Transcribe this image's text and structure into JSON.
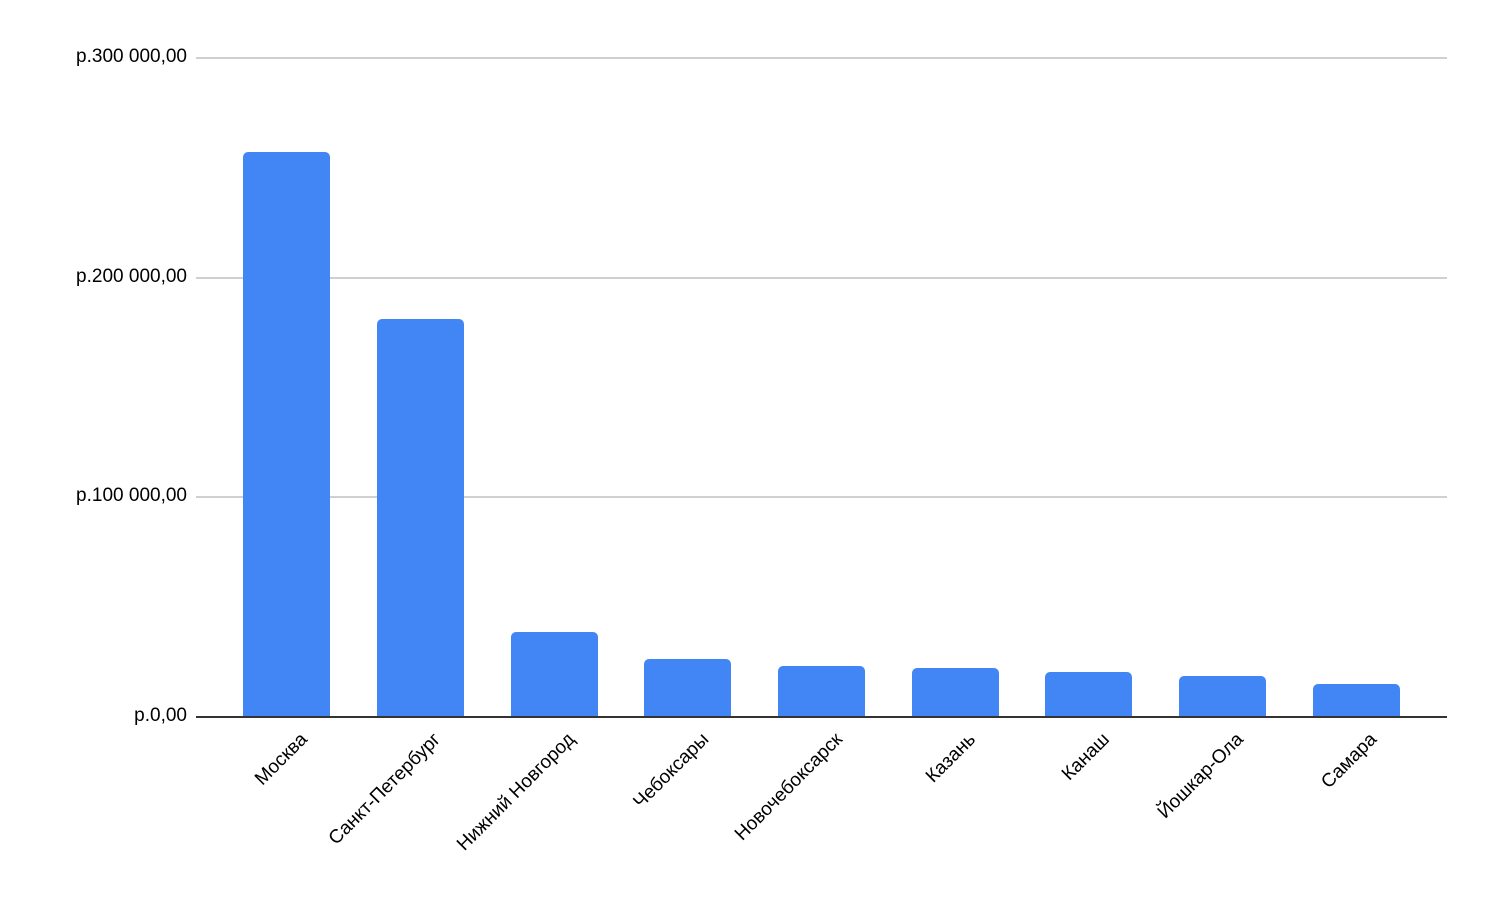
{
  "chart_data": {
    "type": "bar",
    "title": "",
    "xlabel": "",
    "ylabel": "",
    "categories": [
      "Москва",
      "Санкт-Петербург",
      "Нижний Новгород",
      "Чебоксары",
      "Новочебоксарск",
      "Казань",
      "Канаш",
      "Йошкар-Ола",
      "Самара"
    ],
    "values": [
      256700,
      180600,
      38200,
      26000,
      22800,
      21900,
      20000,
      18200,
      14600
    ],
    "currency_format": "р.#,##0.00",
    "ylim": [
      0,
      300000
    ],
    "y_ticks": [
      {
        "value": 0,
        "label": "р.0,00"
      },
      {
        "value": 100000,
        "label": "р.100 000,00"
      },
      {
        "value": 200000,
        "label": "р.200 000,00"
      },
      {
        "value": 300000,
        "label": "р.300 000,00"
      }
    ],
    "grid": true,
    "legend_position": "none",
    "x_label_rotation_deg": -45,
    "colors": {
      "bar": "#4285f4",
      "gridline": "#d0d0d0",
      "axis_line": "#333333",
      "text": "#000000",
      "background": "#ffffff"
    }
  }
}
